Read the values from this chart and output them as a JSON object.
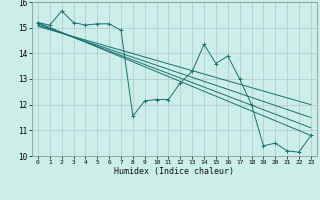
{
  "xlabel": "Humidex (Indice chaleur)",
  "background_color": "#cceee8",
  "grid_color": "#b0c8c8",
  "line_color": "#1a7070",
  "xlim": [
    -0.5,
    23.5
  ],
  "ylim": [
    10,
    16
  ],
  "x_ticks": [
    0,
    1,
    2,
    3,
    4,
    5,
    6,
    7,
    8,
    9,
    10,
    11,
    12,
    13,
    14,
    15,
    16,
    17,
    18,
    19,
    20,
    21,
    22,
    23
  ],
  "y_ticks": [
    10,
    11,
    12,
    13,
    14,
    15,
    16
  ],
  "line1_x": [
    0,
    1,
    2,
    3,
    4,
    5,
    6,
    7,
    8,
    9,
    10,
    11,
    12,
    13,
    14,
    15,
    16,
    17,
    18,
    19,
    20,
    21,
    22,
    23
  ],
  "line1_y": [
    15.2,
    15.1,
    15.65,
    15.2,
    15.1,
    15.15,
    15.15,
    14.9,
    11.55,
    12.15,
    12.2,
    12.2,
    12.85,
    13.3,
    14.35,
    13.6,
    13.9,
    13.0,
    12.0,
    10.4,
    10.5,
    10.2,
    10.15,
    10.8
  ],
  "line2_x": [
    0,
    23
  ],
  "line2_y": [
    15.2,
    10.8
  ],
  "line3_x": [
    0,
    23
  ],
  "line3_y": [
    15.15,
    11.1
  ],
  "line4_x": [
    0,
    23
  ],
  "line4_y": [
    15.1,
    11.5
  ],
  "line5_x": [
    0,
    23
  ],
  "line5_y": [
    15.05,
    12.0
  ]
}
